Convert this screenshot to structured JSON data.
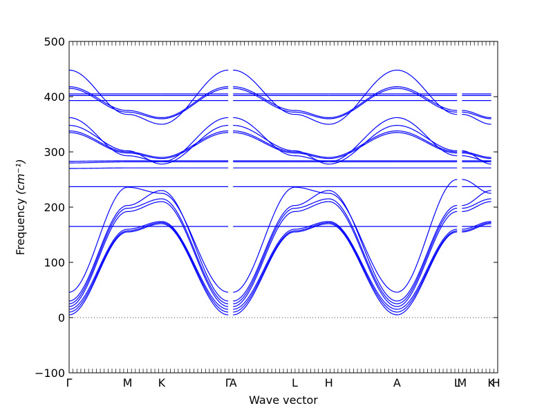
{
  "chart_data": {
    "type": "line",
    "title": "",
    "xlabel": "Wave vector",
    "ylabel_text": "Frequency",
    "ylabel_unit_html": "(cm⁻¹)",
    "ylim": [
      -100,
      500
    ],
    "yticks": [
      -100,
      0,
      100,
      200,
      300,
      400,
      500
    ],
    "xlim": [
      0,
      13.2
    ],
    "special_points": [
      {
        "label": "Γ",
        "x": 0
      },
      {
        "label": "M",
        "x": 1.8
      },
      {
        "label": "K",
        "x": 2.85
      },
      {
        "label": "Γ",
        "x": 4.9
      },
      {
        "label": "A",
        "x": 5.05
      },
      {
        "label": "L",
        "x": 6.95
      },
      {
        "label": "H",
        "x": 8.0
      },
      {
        "label": "A",
        "x": 10.1
      },
      {
        "label": "L",
        "x": 11.95
      },
      {
        "label": "M",
        "x": 12.1
      },
      {
        "label": "K",
        "x": 13.0
      },
      {
        "label": "H",
        "x": 13.15
      }
    ],
    "zero_line": true,
    "grid": false,
    "line_color": "#0000ff",
    "segments": [
      {
        "from": 0,
        "to": 1.8
      },
      {
        "from": 1.8,
        "to": 2.85
      },
      {
        "from": 2.85,
        "to": 4.9
      },
      {
        "from": 5.05,
        "to": 6.95
      },
      {
        "from": 6.95,
        "to": 8.0
      },
      {
        "from": 8.0,
        "to": 10.1
      },
      {
        "from": 10.1,
        "to": 11.95
      },
      {
        "from": 12.1,
        "to": 13.0
      }
    ],
    "series": [
      {
        "values_at_special": [
          5,
          155,
          170,
          5,
          5,
          155,
          170,
          5,
          155,
          155,
          170,
          170
        ]
      },
      {
        "values_at_special": [
          10,
          157,
          172,
          10,
          10,
          157,
          172,
          10,
          157,
          157,
          172,
          172
        ]
      },
      {
        "values_at_special": [
          15,
          160,
          174,
          15,
          15,
          160,
          174,
          15,
          160,
          160,
          174,
          174
        ]
      },
      {
        "values_at_special": [
          20,
          192,
          210,
          20,
          20,
          192,
          210,
          20,
          192,
          192,
          210,
          210
        ]
      },
      {
        "values_at_special": [
          25,
          198,
          215,
          25,
          25,
          198,
          215,
          25,
          198,
          198,
          215,
          215
        ]
      },
      {
        "values_at_special": [
          30,
          203,
          230,
          30,
          30,
          203,
          230,
          30,
          203,
          203,
          230,
          230
        ]
      },
      {
        "values_at_special": [
          46,
          236,
          225,
          46,
          46,
          236,
          225,
          46,
          250,
          250,
          225,
          225
        ]
      },
      {
        "values_at_special": [
          280,
          282,
          282,
          282,
          282,
          282,
          282,
          282,
          282,
          282,
          282,
          282
        ]
      },
      {
        "values_at_special": [
          283,
          284,
          284,
          284,
          284,
          284,
          284,
          284,
          284,
          284,
          284,
          284
        ]
      },
      {
        "values_at_special": [
          270,
          271,
          271,
          271,
          271,
          271,
          271,
          271,
          271,
          271,
          271,
          271
        ]
      },
      {
        "values_at_special": [
          237,
          237,
          237,
          237,
          237,
          237,
          237,
          237,
          237,
          237,
          237,
          237
        ]
      },
      {
        "values_at_special": [
          165,
          165,
          165,
          165,
          165,
          165,
          165,
          165,
          165,
          165,
          165,
          165
        ]
      },
      {
        "values_at_special": [
          335,
          298,
          288,
          335,
          335,
          298,
          288,
          335,
          298,
          298,
          288,
          288
        ]
      },
      {
        "values_at_special": [
          338,
          300,
          290,
          338,
          338,
          300,
          290,
          338,
          300,
          300,
          290,
          290
        ]
      },
      {
        "values_at_special": [
          348,
          302,
          278,
          348,
          348,
          302,
          278,
          348,
          302,
          302,
          278,
          278
        ]
      },
      {
        "values_at_special": [
          362,
          293,
          282,
          362,
          362,
          293,
          282,
          362,
          293,
          293,
          282,
          282
        ]
      },
      {
        "values_at_special": [
          415,
          372,
          360,
          415,
          415,
          372,
          360,
          415,
          372,
          372,
          360,
          360
        ]
      },
      {
        "values_at_special": [
          418,
          375,
          362,
          418,
          418,
          375,
          362,
          418,
          375,
          375,
          362,
          362
        ]
      },
      {
        "values_at_special": [
          448,
          368,
          350,
          448,
          448,
          368,
          350,
          448,
          368,
          368,
          350,
          350
        ]
      },
      {
        "values_at_special": [
          405,
          405,
          405,
          405,
          405,
          405,
          405,
          405,
          405,
          405,
          405,
          405
        ]
      },
      {
        "values_at_special": [
          402,
          402,
          402,
          402,
          402,
          402,
          402,
          402,
          402,
          402,
          402,
          402
        ]
      },
      {
        "values_at_special": [
          393,
          393,
          393,
          393,
          393,
          393,
          393,
          393,
          393,
          393,
          393,
          393
        ]
      }
    ]
  }
}
